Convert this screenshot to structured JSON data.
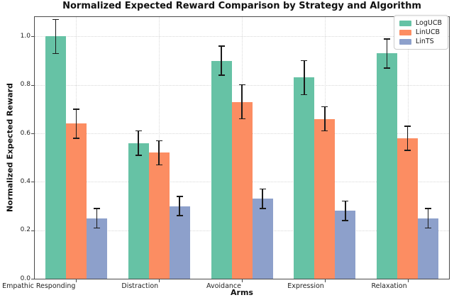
{
  "chart_data": {
    "type": "bar",
    "title": "Normalized Expected Reward Comparison by Strategy and Algorithm",
    "xlabel": "Arms",
    "ylabel": "Normalized Expected Reward",
    "categories": [
      "Empathic Responding",
      "Distraction",
      "Avoidance",
      "Expression",
      "Relaxation"
    ],
    "series": [
      {
        "name": "LogUCB",
        "color": "#66c2a5",
        "values": [
          1.0,
          0.56,
          0.9,
          0.83,
          0.93
        ],
        "errors": [
          0.07,
          0.05,
          0.06,
          0.07,
          0.06
        ]
      },
      {
        "name": "LinUCB",
        "color": "#fc8d62",
        "values": [
          0.64,
          0.52,
          0.73,
          0.66,
          0.58
        ],
        "errors": [
          0.06,
          0.05,
          0.07,
          0.05,
          0.05
        ]
      },
      {
        "name": "LinTS",
        "color": "#8da0cb",
        "values": [
          0.25,
          0.3,
          0.33,
          0.28,
          0.25
        ],
        "errors": [
          0.04,
          0.04,
          0.04,
          0.04,
          0.04
        ]
      }
    ],
    "ylim": [
      0,
      1.08
    ],
    "yticks": [
      0.0,
      0.2,
      0.4,
      0.6,
      0.8,
      1.0
    ],
    "grid": true,
    "legend_position": "upper-right",
    "error_bar_color": "#1a1a1a"
  }
}
